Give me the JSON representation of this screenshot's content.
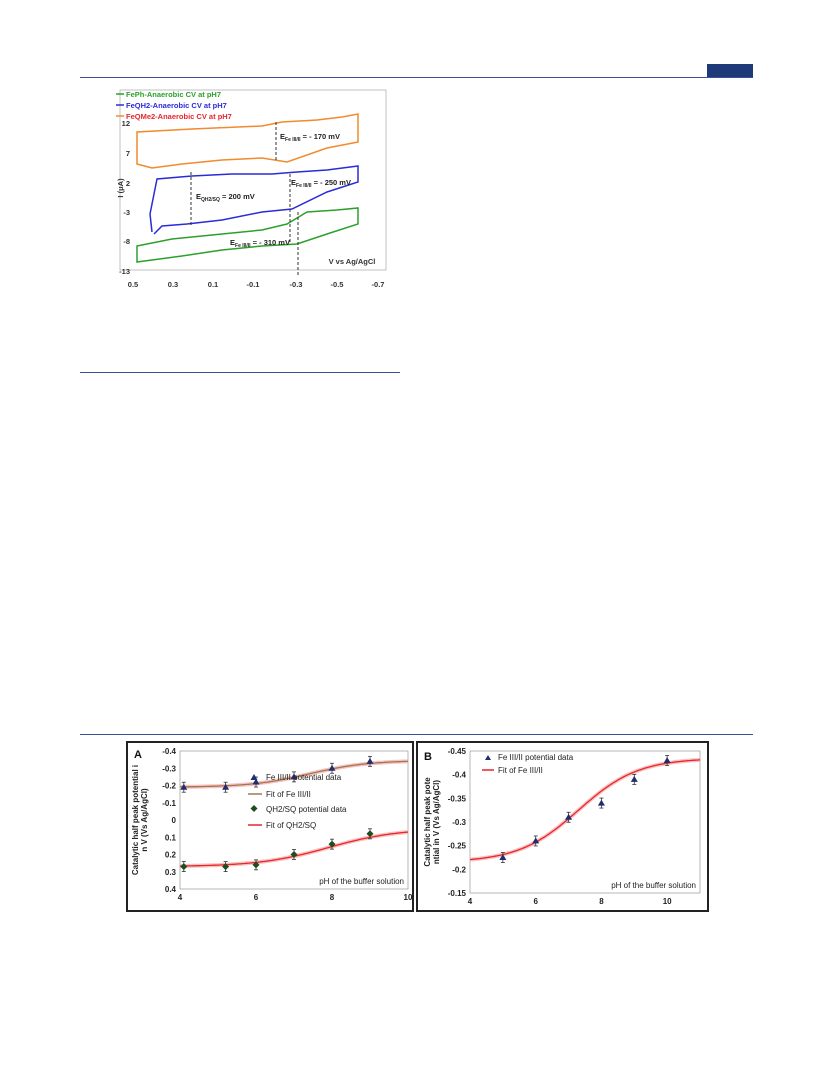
{
  "colors": {
    "rule_blue": "#3b4f9a",
    "tab_blue": "#1f3a78",
    "green": "#2ca02c",
    "blue": "#2b2bd8",
    "orange": "#f28a2e",
    "red_fit": "#e8262b",
    "brown_fit": "#a07850",
    "navy_marker": "#1f2f6e",
    "dark_green_marker": "#1e4d1e"
  },
  "cv_figure": {
    "ylabel": "I (μA)",
    "xlabel": "V vs Ag/AgCl",
    "y_ticks": [
      "12",
      "7",
      "2",
      "-3",
      "-8",
      "-13"
    ],
    "x_ticks": [
      "0.5",
      "0.3",
      "0.1",
      "-0.1",
      "-0.3",
      "-0.5",
      "-0.7"
    ],
    "legend": [
      {
        "label": "FePh-Anaerobic CV at pH7",
        "color": "#2ca02c"
      },
      {
        "label": "FeQH2-Anaerobic CV at pH7",
        "color": "#2b2bd8"
      },
      {
        "label": "FeQMe2-Anaerobic CV at pH7",
        "color": "#f28a2e"
      }
    ],
    "annotations": {
      "orange": "E_Fe III/II = - 170 mV",
      "blue_q": "E_QH2/SQ = 200 mV",
      "blue_fe": "E_Fe III/II = - 250 mV",
      "green": "E_Fe III/II = - 310 mV"
    }
  },
  "chart_data": [
    {
      "type": "line",
      "panel": "A",
      "ylabel": "Catalytic half peak potential in V (Vs Ag/AgCl)",
      "xlabel": "pH of the buffer solution",
      "x_ticks": [
        "4",
        "6",
        "8",
        "10"
      ],
      "y_ticks": [
        "-0.4",
        "-0.3",
        "-0.2",
        "-0.1",
        "0",
        "0.1",
        "0.2",
        "0.3",
        "0.4"
      ],
      "xlim": [
        4,
        10
      ],
      "ylim": [
        -0.4,
        0.4
      ],
      "y_inverted": true,
      "legend": [
        "Fe III/II potential data",
        "Fit of Fe III/II",
        "QH2/SQ potential data",
        "Fit of QH2/SQ"
      ],
      "series": [
        {
          "name": "Fe III/II potential data",
          "marker": "triangle",
          "x": [
            4.1,
            5.2,
            6.0,
            7.0,
            8.0,
            9.0
          ],
          "y": [
            -0.19,
            -0.19,
            -0.22,
            -0.25,
            -0.3,
            -0.34
          ]
        },
        {
          "name": "QH2/SQ potential data",
          "marker": "diamond",
          "x": [
            4.1,
            5.2,
            6.0,
            7.0,
            8.0,
            9.0
          ],
          "y": [
            0.27,
            0.27,
            0.26,
            0.2,
            0.14,
            0.08
          ]
        }
      ]
    },
    {
      "type": "line",
      "panel": "B",
      "ylabel": "Catalytic half peak potential in V (Vs Ag/AgCl)",
      "xlabel": "pH of the buffer solution",
      "x_ticks": [
        "4",
        "6",
        "8",
        "10"
      ],
      "y_ticks": [
        "-0.45",
        "-0.4",
        "-0.35",
        "-0.3",
        "-0.25",
        "-0.2",
        "-0.15"
      ],
      "xlim": [
        4,
        11
      ],
      "ylim": [
        -0.45,
        -0.15
      ],
      "y_inverted": true,
      "legend": [
        "Fe III/II potential data",
        "Fit of Fe III/II"
      ],
      "series": [
        {
          "name": "Fe III/II potential data",
          "marker": "triangle",
          "x": [
            5.0,
            6.0,
            7.0,
            8.0,
            9.0,
            10.0
          ],
          "y": [
            -0.225,
            -0.26,
            -0.31,
            -0.34,
            -0.39,
            -0.43
          ]
        }
      ]
    }
  ]
}
